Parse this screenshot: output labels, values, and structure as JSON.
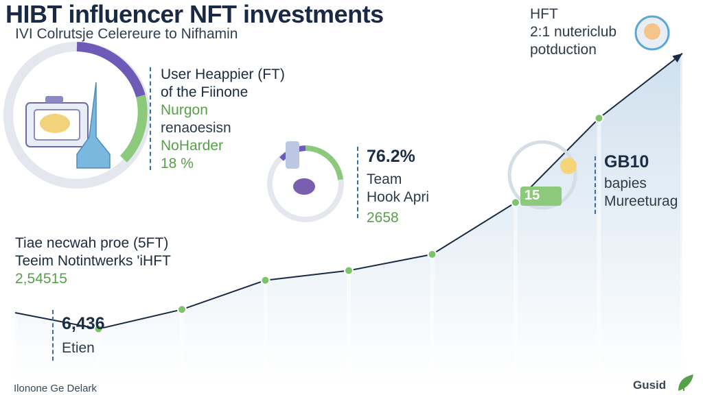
{
  "title": "HIBT influencer NFT investments",
  "subtitle": "IVI Colrutsje Celereure to Nifhamin",
  "callouts": {
    "top_left": {
      "line1": "User Heappier (FT)",
      "line2": "of the Fiinone",
      "line3": "Nurgon",
      "line4": "renaoesisn",
      "line5": "NoHarder",
      "line6": "18 %"
    },
    "top_right": {
      "line1": "HFT",
      "line2": "2:1 nutericlub",
      "line3": "potduction"
    },
    "middle": {
      "value": "76.2%",
      "line1": "Team",
      "line2": "Hook Apri",
      "line3": "2658"
    },
    "right": {
      "value": "GB10",
      "line1": "bapies",
      "line2": "Mureeturag"
    },
    "left_mid": {
      "line1": "Tiae necwah proe (5FT)",
      "line2": "Teeim Notintwerks 'iHFT",
      "value": "2,54515"
    },
    "bottom": {
      "value": "6,436",
      "label": "Etien"
    },
    "badge_text": "15"
  },
  "footer": {
    "left": "Ilonone Ge Delark",
    "right": "Gusid"
  },
  "colors": {
    "line": "#1b2a44",
    "area_top": "#cfe0ee",
    "area_bottom": "#ffffff",
    "marker": "#7cc36b",
    "accent_green": "#57a04a",
    "accent_purple": "#6e5bb8",
    "accent_blue": "#5aa6d6"
  },
  "chart_data": {
    "type": "area",
    "x": [
      1,
      2,
      3,
      4,
      5,
      6,
      7,
      8,
      9
    ],
    "y": [
      2.2,
      1.7,
      2.3,
      3.2,
      3.5,
      4.0,
      5.6,
      8.2,
      10.2
    ],
    "ylim": [
      0,
      11
    ],
    "grid": false,
    "title": "HIBT influencer NFT investments",
    "xlabel": "",
    "ylabel": ""
  }
}
